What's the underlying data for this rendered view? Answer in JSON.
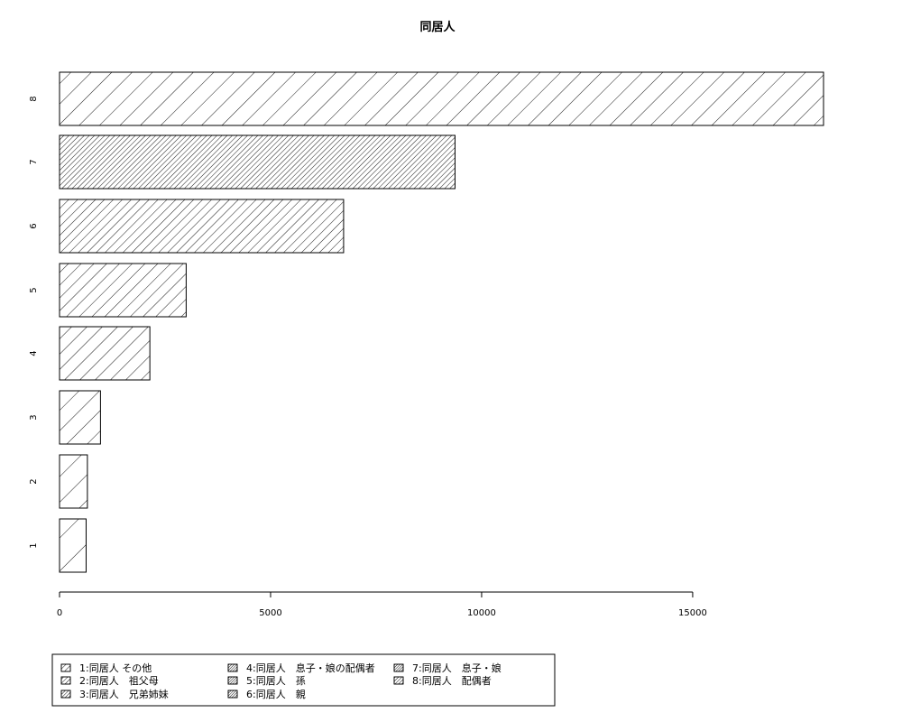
{
  "chart_data": {
    "type": "bar",
    "orientation": "horizontal",
    "title": "同居人",
    "xlabel": "",
    "ylabel": "",
    "categories": [
      "1",
      "2",
      "3",
      "4",
      "5",
      "6",
      "7",
      "8"
    ],
    "values": [
      630,
      660,
      970,
      2140,
      3000,
      6730,
      9370,
      18100
    ],
    "xlim": [
      0,
      18100
    ],
    "x_ticks": [
      "0",
      "5000",
      "10000",
      "15000"
    ],
    "x_tick_values": [
      0,
      5000,
      10000,
      15000
    ],
    "grid": false,
    "legend_position": "bottom-left",
    "legend": [
      "1:同居人 その他",
      "2:同居人　祖父母",
      "3:同居人　兄弟姉妹",
      "4:同居人　息子・娘の配偶者",
      "5:同居人　孫",
      "6:同居人　親",
      "7:同居人　息子・娘",
      "8:同居人　配偶者"
    ],
    "hatch_density": [
      1,
      2,
      3,
      4,
      5,
      6,
      7,
      8
    ]
  }
}
